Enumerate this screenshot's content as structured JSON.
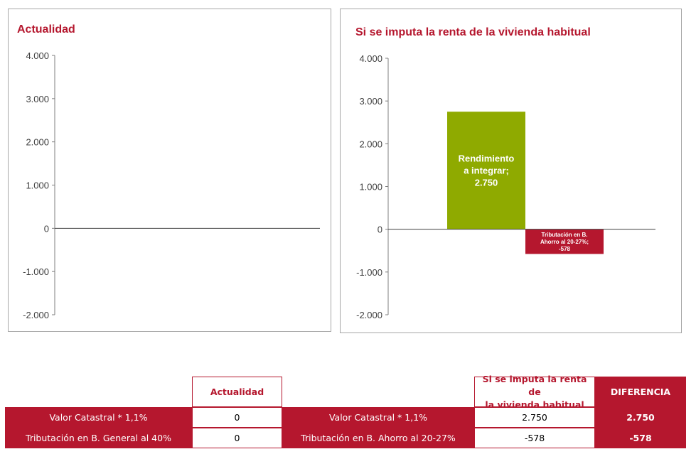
{
  "colors": {
    "accent": "#b5172e",
    "positive_bar": "#8faa00",
    "negative_bar": "#b5172e"
  },
  "chart_data": [
    {
      "type": "bar",
      "title": "Actualidad",
      "y_ticks": [
        "4.000",
        "3.000",
        "2.000",
        "1.000",
        "0",
        "-1.000",
        "-2.000"
      ],
      "ylim": [
        -2000,
        4000
      ],
      "categories": [],
      "values": [],
      "grid": false
    },
    {
      "type": "bar",
      "title": "Si se imputa la renta de la vivienda habitual",
      "y_ticks": [
        "4.000",
        "3.000",
        "2.000",
        "1.000",
        "0",
        "-1.000",
        "-2.000"
      ],
      "ylim": [
        -2000,
        4000
      ],
      "grid": false,
      "bars": [
        {
          "value": 2750,
          "label_lines": [
            "Rendimiento",
            "a integrar;",
            "2.750"
          ],
          "color": "#8faa00"
        },
        {
          "value": -578,
          "label_lines": [
            "Tributación en B.",
            "Ahorro al 20-27%;",
            "-578"
          ],
          "color": "#b5172e"
        }
      ]
    }
  ],
  "table": {
    "header_actualidad": "Actualidad",
    "header_imputa_line1": "Si se imputa la renta de",
    "header_imputa_line2": "la vivienda habitual",
    "header_diferencia": "DIFERENCIA",
    "rows": [
      {
        "left_label": "Valor Catastral * 1,1%",
        "actualidad": "0",
        "right_label": "Valor Catastral * 1,1%",
        "imputa": "2.750",
        "diferencia": "2.750"
      },
      {
        "left_label": "Tributación en B. General al 40%",
        "actualidad": "0",
        "right_label": "Tributación en B. Ahorro al 20-27%",
        "imputa": "-578",
        "diferencia": "-578"
      }
    ]
  }
}
